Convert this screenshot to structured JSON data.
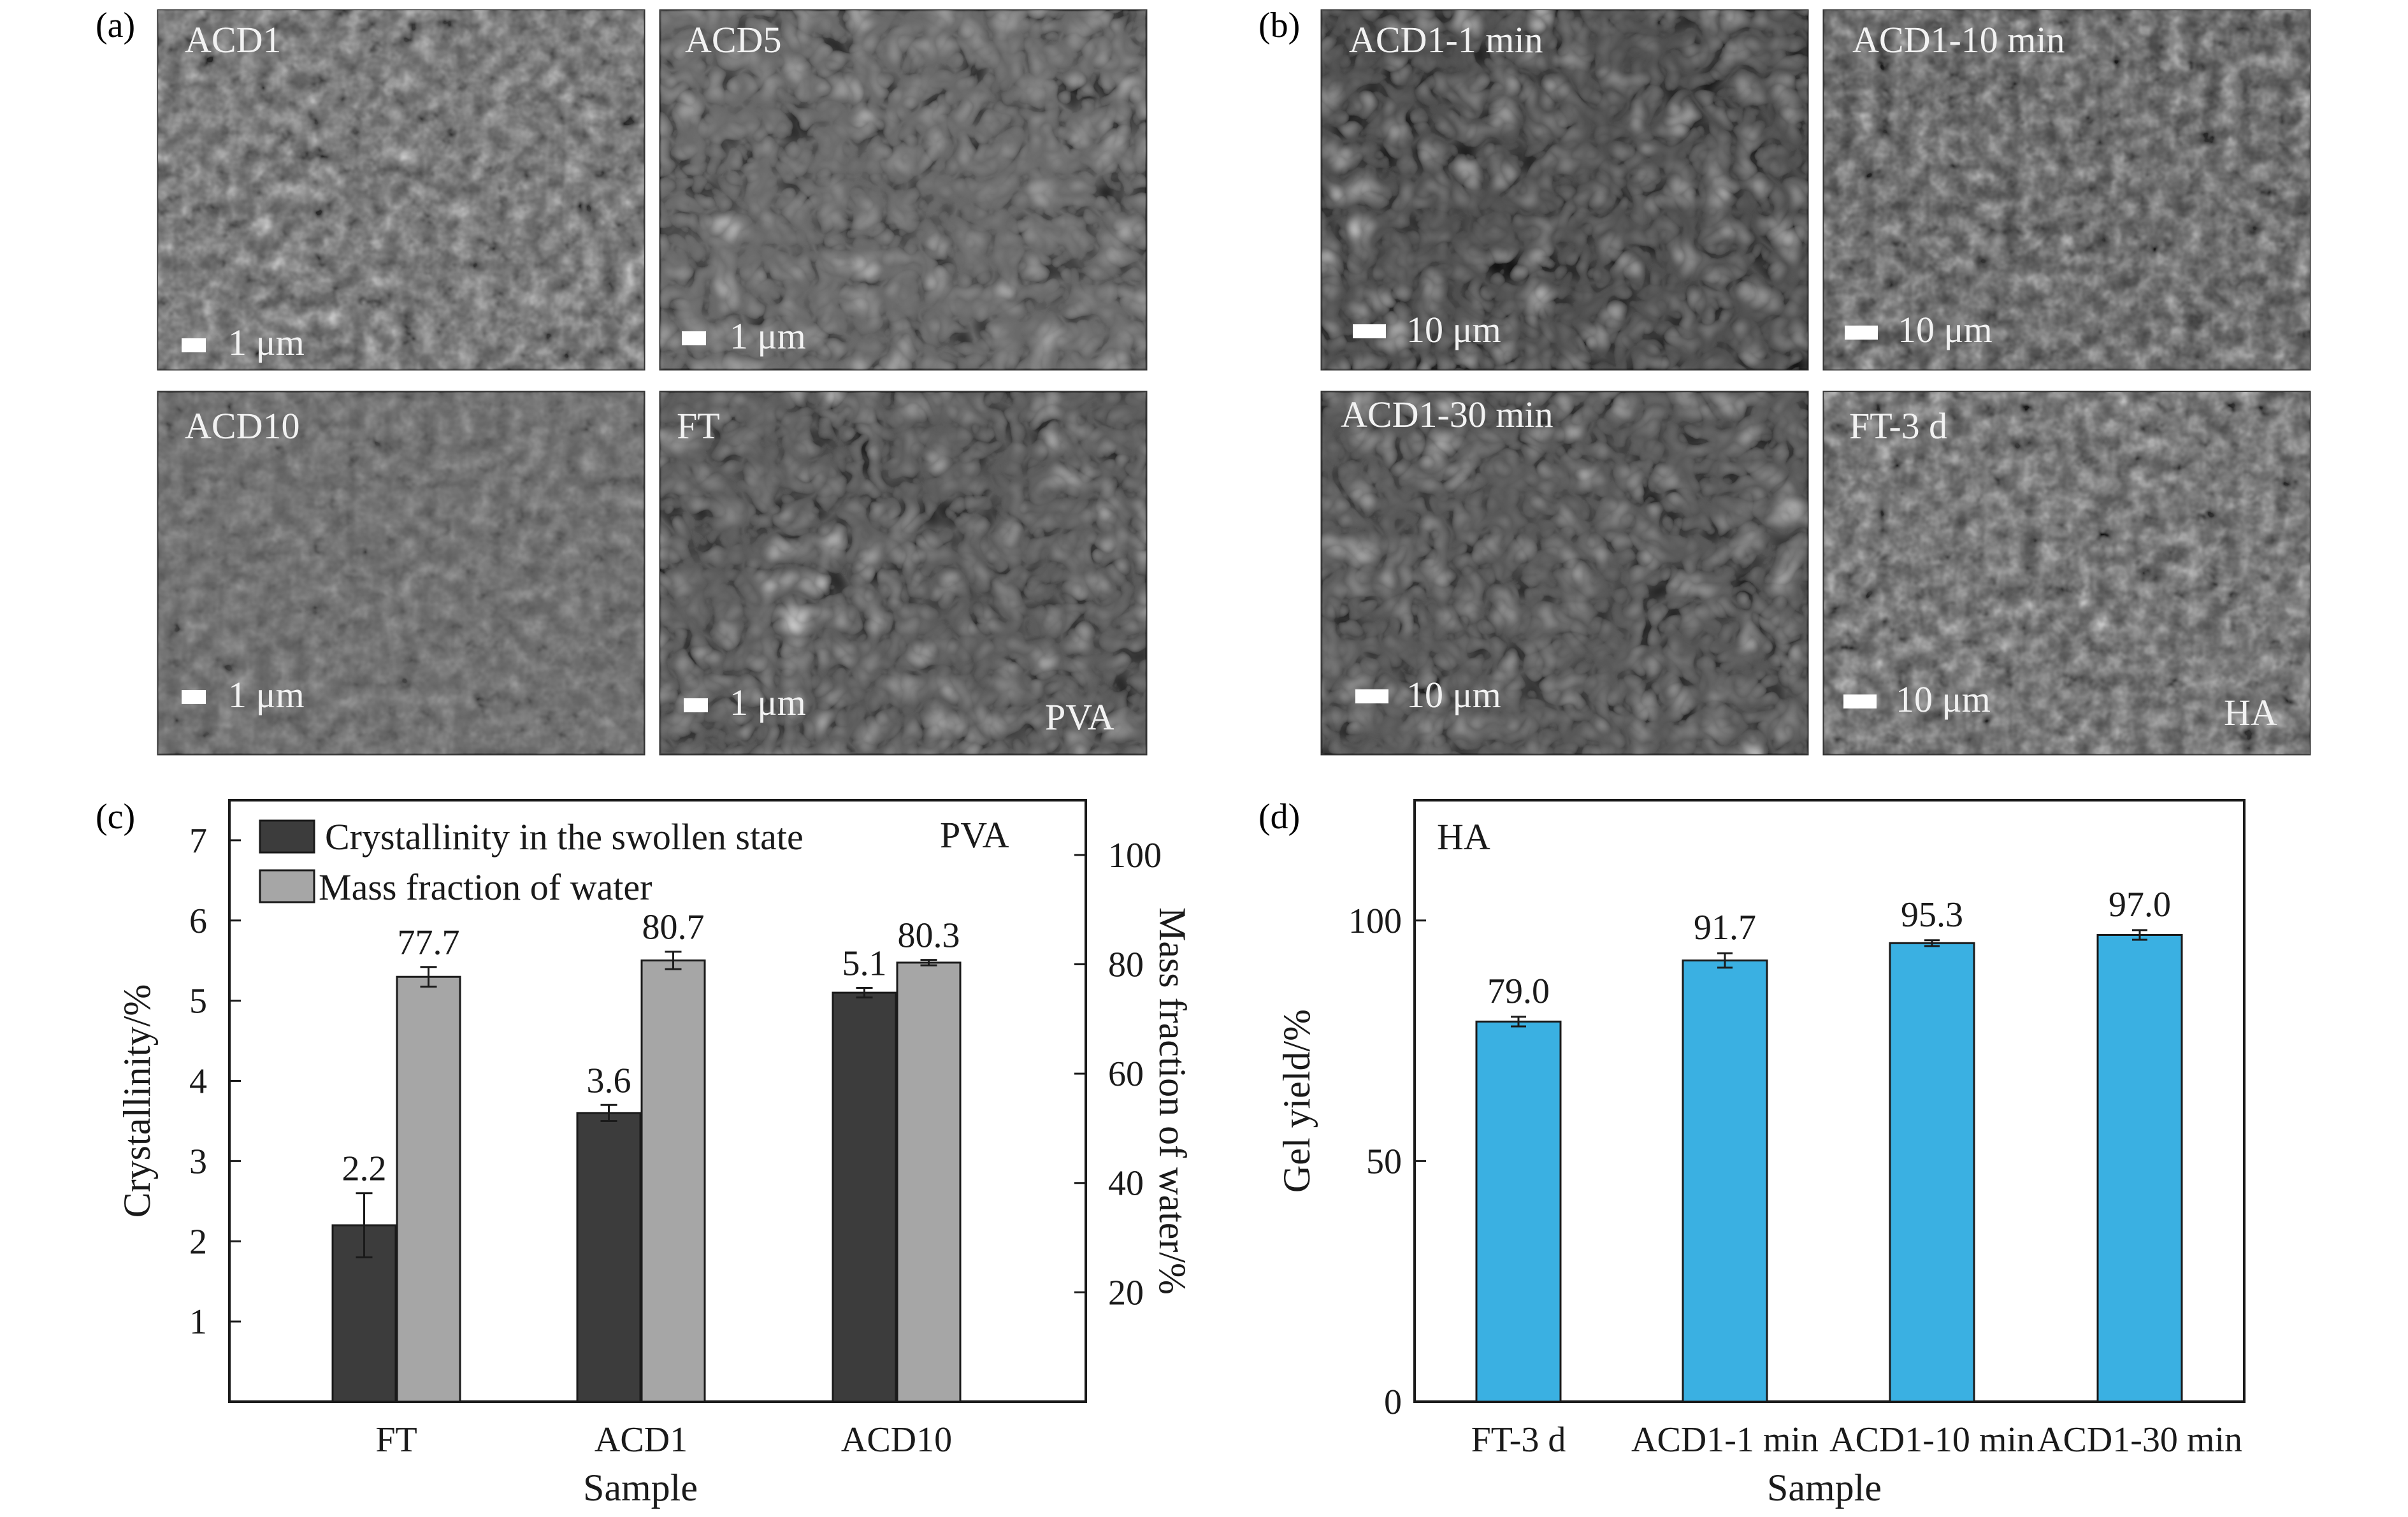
{
  "panels": {
    "a": "(a)",
    "b": "(b)",
    "c": "(c)",
    "d": "(d)"
  },
  "sem_a": {
    "images": [
      {
        "label": "ACD1",
        "scale": "1 μm"
      },
      {
        "label": "ACD5",
        "scale": "1 μm"
      },
      {
        "label": "ACD10",
        "scale": "1 μm"
      },
      {
        "label": "FT",
        "scale": "1 μm"
      }
    ],
    "material": "PVA"
  },
  "sem_b": {
    "images": [
      {
        "label": "ACD1-1 min",
        "scale": "10 μm"
      },
      {
        "label": "ACD1-10 min",
        "scale": "10 μm"
      },
      {
        "label": "ACD1-30 min",
        "scale": "10 μm"
      },
      {
        "label": "FT-3 d",
        "scale": "10 μm"
      }
    ],
    "material": "HA"
  },
  "chart_data": [
    {
      "type": "bar",
      "material": "PVA",
      "categories": [
        "FT",
        "ACD1",
        "ACD10"
      ],
      "series": [
        {
          "name": "Crystallinity in the swollen state",
          "axis": "left",
          "color": "#3c3c3c",
          "values": [
            2.2,
            3.6,
            5.1
          ],
          "errors": [
            0.4,
            0.1,
            0.06
          ],
          "labels": [
            "2.2",
            "3.6",
            "5.1"
          ]
        },
        {
          "name": "Mass fraction of water",
          "axis": "right",
          "color": "#a6a6a6",
          "values": [
            77.7,
            80.7,
            80.3
          ],
          "errors": [
            1.8,
            1.6,
            0.5
          ],
          "labels": [
            "77.7",
            "80.7",
            "80.3"
          ]
        }
      ],
      "xlabel": "Sample",
      "ylabel": "Crystallinity/%",
      "y2label": "Mass fraction of water/%",
      "ylim": [
        0,
        7.5
      ],
      "y2lim": [
        0,
        110
      ],
      "yticks": [
        "1",
        "2",
        "3",
        "4",
        "5",
        "6",
        "7"
      ],
      "y2ticks": [
        "20",
        "40",
        "60",
        "80",
        "100"
      ],
      "legend": "top-left",
      "grid": false
    },
    {
      "type": "bar",
      "material": "HA",
      "categories": [
        "FT-3 d",
        "ACD1-1 min",
        "ACD1-10 min",
        "ACD1-30 min"
      ],
      "series": [
        {
          "color": "#3ab0e2",
          "values": [
            79.0,
            91.7,
            95.3,
            97.0
          ],
          "errors": [
            1.0,
            1.5,
            0.6,
            1.0
          ],
          "labels": [
            "79.0",
            "91.7",
            "95.3",
            "97.0"
          ]
        }
      ],
      "xlabel": "Sample",
      "ylabel": "Gel yield/%",
      "ylim": [
        0,
        125
      ],
      "yticks": [
        "0",
        "50",
        "100"
      ],
      "grid": false
    }
  ]
}
